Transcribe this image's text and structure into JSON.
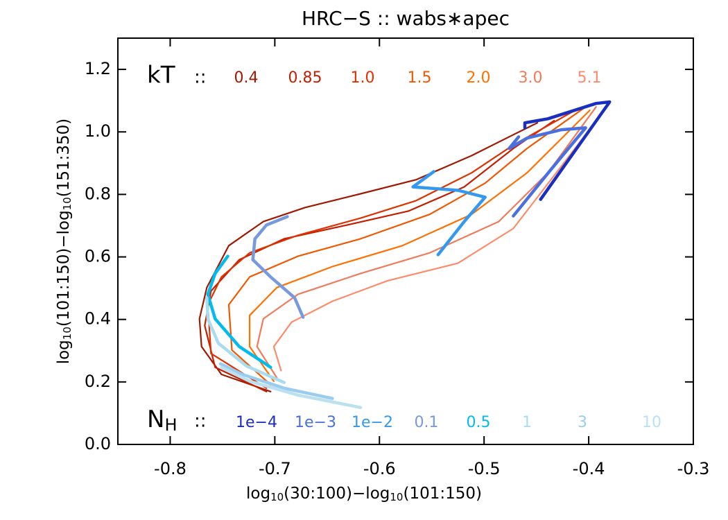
{
  "chart_data": {
    "type": "line",
    "title": "HRC−S :: wabs∗apec",
    "x_label": [
      "log",
      "10",
      "(30:100)−log",
      "10",
      "(101:150)"
    ],
    "y_label": [
      "log",
      "10",
      "(101:150)−log",
      "10",
      "(151:350)"
    ],
    "xlim": [
      -0.85,
      -0.3
    ],
    "ylim": [
      0,
      1.3
    ],
    "xticks": [
      -0.8,
      -0.7,
      -0.6,
      -0.5,
      -0.4,
      -0.3
    ],
    "yticks": [
      {
        "value": 0,
        "label": "0.0"
      },
      0.2,
      0.4,
      0.6,
      0.8,
      {
        "value": 1,
        "label": "1.0"
      },
      1.2
    ],
    "kt_title": "kT",
    "kt_separator": "::",
    "nh_title": "N",
    "nh_title_sub": "H",
    "nh_separator": "::",
    "kt_series": [
      {
        "name": "0.4",
        "color": "#a01800",
        "x": [
          -0.704,
          -0.751,
          -0.77,
          -0.772,
          -0.765,
          -0.744,
          -0.711,
          -0.671,
          -0.618,
          -0.565,
          -0.512,
          -0.472,
          -0.449
        ],
        "values": [
          0.169,
          0.224,
          0.313,
          0.402,
          0.502,
          0.636,
          0.713,
          0.758,
          0.802,
          0.847,
          0.924,
          0.991,
          1.029
        ]
      },
      {
        "name": "0.85",
        "color": "#c41e00",
        "x": [
          -0.708,
          -0.757,
          -0.767,
          -0.761,
          -0.734,
          -0.691,
          -0.631,
          -0.572,
          -0.519,
          -0.472,
          -0.433
        ],
        "values": [
          0.169,
          0.247,
          0.38,
          0.491,
          0.591,
          0.658,
          0.702,
          0.747,
          0.824,
          0.947,
          1.036
        ]
      },
      {
        "name": "1.0",
        "color": "#e03000",
        "x": [
          -0.708,
          -0.761,
          -0.764,
          -0.751,
          -0.724,
          -0.678,
          -0.618,
          -0.565,
          -0.512,
          -0.472,
          -0.413
        ],
        "values": [
          0.18,
          0.291,
          0.447,
          0.536,
          0.613,
          0.669,
          0.724,
          0.78,
          0.869,
          0.958,
          1.069
        ]
      },
      {
        "name": "1.5",
        "color": "#f05800",
        "x": [
          -0.704,
          -0.741,
          -0.744,
          -0.724,
          -0.678,
          -0.618,
          -0.552,
          -0.499,
          -0.459,
          -0.403
        ],
        "values": [
          0.191,
          0.302,
          0.447,
          0.536,
          0.602,
          0.658,
          0.736,
          0.836,
          0.947,
          1.08
        ]
      },
      {
        "name": "2.0",
        "color": "#ff7000",
        "x": [
          -0.701,
          -0.724,
          -0.724,
          -0.698,
          -0.645,
          -0.578,
          -0.512,
          -0.459,
          -0.399
        ],
        "values": [
          0.202,
          0.313,
          0.413,
          0.502,
          0.569,
          0.636,
          0.736,
          0.869,
          1.069
        ]
      },
      {
        "name": "3.0",
        "color": "#f07a5a",
        "x": [
          -0.698,
          -0.717,
          -0.711,
          -0.678,
          -0.618,
          -0.552,
          -0.486,
          -0.439,
          -0.393
        ],
        "values": [
          0.213,
          0.313,
          0.402,
          0.48,
          0.547,
          0.613,
          0.713,
          0.869,
          1.08
        ]
      },
      {
        "name": "5.1",
        "color": "#ff8a6a",
        "x": [
          -0.694,
          -0.701,
          -0.684,
          -0.645,
          -0.592,
          -0.525,
          -0.472,
          -0.426,
          -0.38
        ],
        "values": [
          0.236,
          0.313,
          0.391,
          0.458,
          0.524,
          0.58,
          0.691,
          0.891,
          1.091
        ]
      }
    ],
    "nh_series": [
      {
        "name": "1e−4",
        "color": "#1a2fc0",
        "x": [
          -0.446,
          -0.38,
          -0.393,
          -0.439,
          -0.461,
          -0.461
        ],
        "values": [
          0.784,
          1.096,
          1.091,
          1.042,
          1.029,
          1.013
        ]
      },
      {
        "name": "1e−3",
        "color": "#4a70e0",
        "x": [
          -0.472,
          -0.436,
          -0.403,
          -0.426,
          -0.459,
          -0.476,
          -0.467
        ],
        "values": [
          0.731,
          0.88,
          1.013,
          1.007,
          0.98,
          0.947,
          0.984
        ]
      },
      {
        "name": "1e−2",
        "color": "#3399ee",
        "x": [
          -0.544,
          -0.519,
          -0.499,
          -0.525,
          -0.568,
          -0.548
        ],
        "values": [
          0.607,
          0.713,
          0.791,
          0.813,
          0.824,
          0.873
        ]
      },
      {
        "name": "0.1",
        "color": "#7799dd",
        "x": [
          -0.673,
          -0.681,
          -0.704,
          -0.721,
          -0.719,
          -0.708,
          -0.688
        ],
        "values": [
          0.407,
          0.469,
          0.536,
          0.591,
          0.658,
          0.702,
          0.729
        ]
      },
      {
        "name": "0.5",
        "color": "#00bbee",
        "x": [
          -0.704,
          -0.734,
          -0.757,
          -0.764,
          -0.757,
          -0.745
        ],
        "values": [
          0.247,
          0.313,
          0.402,
          0.48,
          0.547,
          0.602
        ]
      },
      {
        "name": "1",
        "color": "#a8dcee",
        "x": [
          -0.691,
          -0.727,
          -0.754,
          -0.764,
          -0.765
        ],
        "values": [
          0.198,
          0.251,
          0.324,
          0.402,
          0.469
        ]
      },
      {
        "name": "3",
        "color": "#99ccee",
        "x": [
          -0.645,
          -0.691,
          -0.731,
          -0.752
        ],
        "values": [
          0.147,
          0.18,
          0.224,
          0.258
        ]
      },
      {
        "name": "10",
        "color": "#bbe0f0",
        "x": [
          -0.618,
          -0.678,
          -0.724,
          -0.751
        ],
        "values": [
          0.118,
          0.158,
          0.202,
          0.247
        ]
      }
    ]
  }
}
